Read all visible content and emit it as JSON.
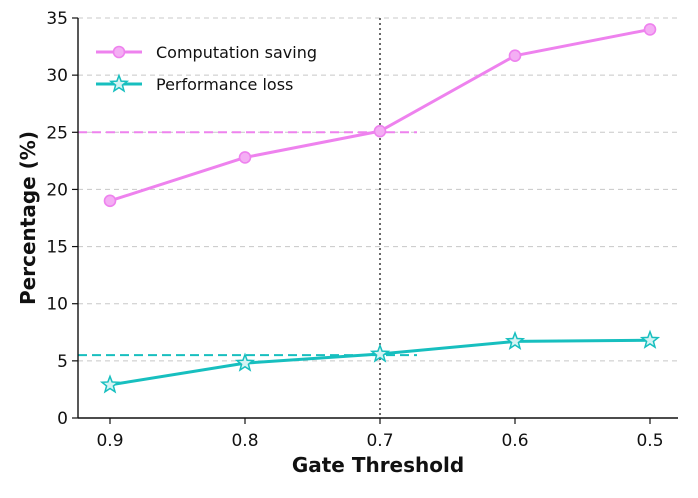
{
  "chart_data": {
    "type": "line",
    "title": "",
    "xlabel": "Gate Threshold",
    "ylabel": "Percentage (%)",
    "categories": [
      "0.9",
      "0.8",
      "0.7",
      "0.6",
      "0.5"
    ],
    "ylim": [
      0,
      35
    ],
    "yticks": [
      0,
      5,
      10,
      15,
      20,
      25,
      30,
      35
    ],
    "grid": "horizontal-dashed",
    "legend_position": "top-left",
    "series": [
      {
        "name": "Computation saving",
        "marker": "circle",
        "color": "#ee82ee",
        "values": [
          19.0,
          22.8,
          25.1,
          31.7,
          34.0
        ]
      },
      {
        "name": "Performance loss",
        "marker": "star",
        "color": "#17bfbf",
        "values": [
          2.9,
          4.8,
          5.6,
          6.7,
          6.8
        ]
      }
    ],
    "reference_lines": [
      {
        "orientation": "vertical",
        "x_category": "0.7",
        "style": "dotted",
        "color": "#444444"
      },
      {
        "orientation": "horizontal",
        "y": 25,
        "from_category": "0.9",
        "to_category": "0.7",
        "style": "dashed",
        "color": "#ee82ee"
      },
      {
        "orientation": "horizontal",
        "y": 5.5,
        "from_category": "0.9",
        "to_category": "0.7",
        "style": "dashed",
        "color": "#17bfbf"
      }
    ]
  }
}
